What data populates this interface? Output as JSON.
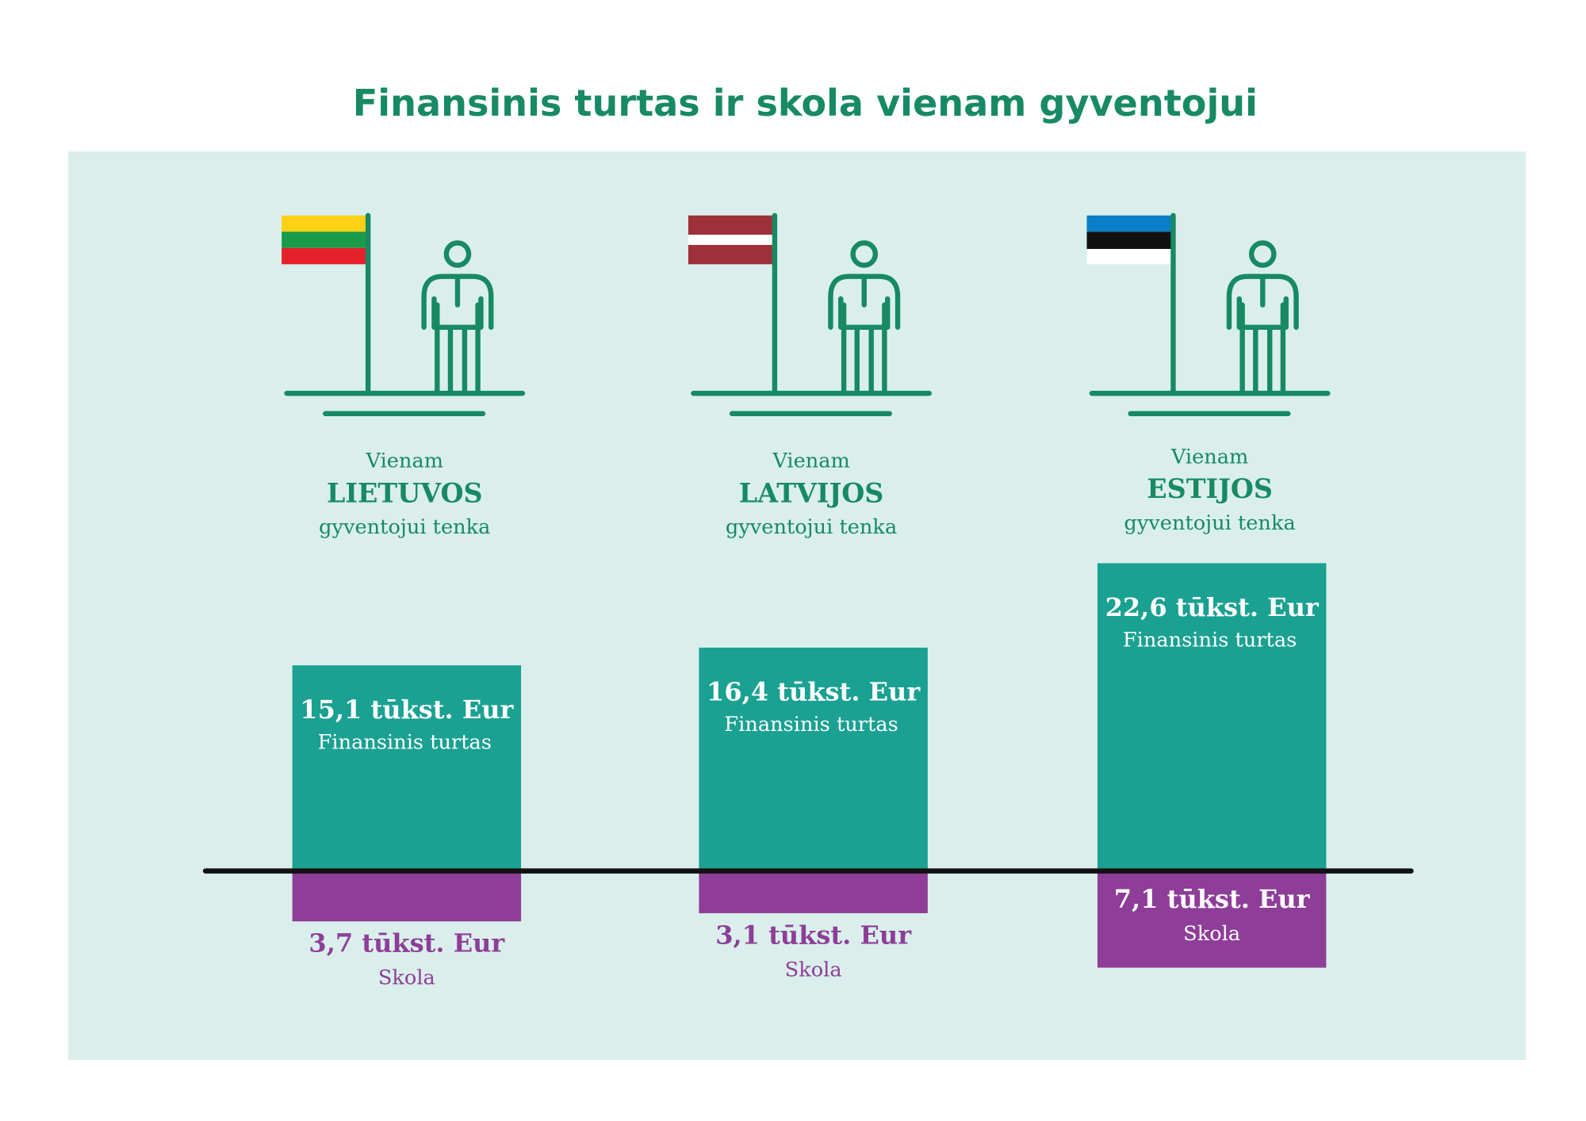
{
  "chart_data": {
    "type": "bar",
    "title": "Finansinis turtas ir skola vienam gyventojui",
    "caption_before": "Vienam",
    "caption_after": "gyventojui tenka",
    "categories": [
      "LIETUVOS",
      "LATVIJOS",
      "ESTIJOS"
    ],
    "baseline": true,
    "series": [
      {
        "name": "Finansinis turtas",
        "color": "#1aa192",
        "direction": "up",
        "values": [
          15.1,
          16.4,
          22.6
        ],
        "value_labels": [
          "15,1 tūkst. Eur",
          "16,4 tūkst. Eur",
          "22,6 tūkst. Eur"
        ]
      },
      {
        "name": "Skola",
        "color": "#8e3d98",
        "direction": "down",
        "values": [
          3.7,
          3.1,
          7.1
        ],
        "value_labels": [
          "3,7 tūkst. Eur",
          "3,1 tūkst. Eur",
          "7,1 tūkst. Eur"
        ]
      }
    ]
  }
}
